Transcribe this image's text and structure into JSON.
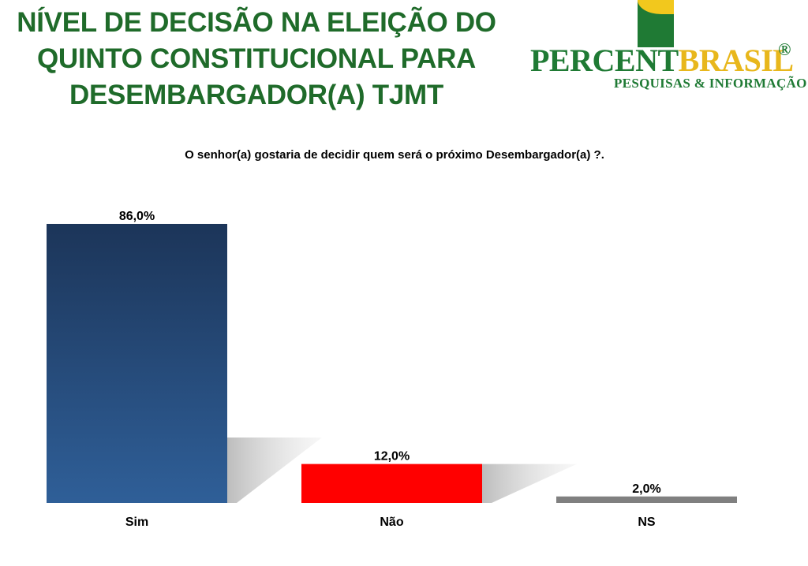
{
  "header": {
    "title_lines": [
      "NÍVEL DE DECISÃO NA ELEIÇÃO DO",
      "QUINTO CONSTITUCIONAL PARA",
      "DESEMBARGADOR(A) TJMT"
    ]
  },
  "logo": {
    "word_part1": "PERCENT",
    "word_part2": "BRASIL",
    "registered": "®",
    "tagline": "PESQUISAS & INFORMAÇÃO"
  },
  "chart_data": {
    "type": "bar",
    "title": "O senhor(a) gostaria de decidir quem será o próximo Desembargador(a) ?.",
    "categories": [
      "Sim",
      "Não",
      "NS"
    ],
    "values": [
      86.0,
      12.0,
      2.0
    ],
    "value_labels": [
      "86,0%",
      "12,0%",
      "2,0%"
    ],
    "colors": [
      "#2c5a92",
      "#ff0000",
      "#808080"
    ],
    "ylim": [
      0,
      86
    ],
    "grid": false,
    "legend": false
  }
}
